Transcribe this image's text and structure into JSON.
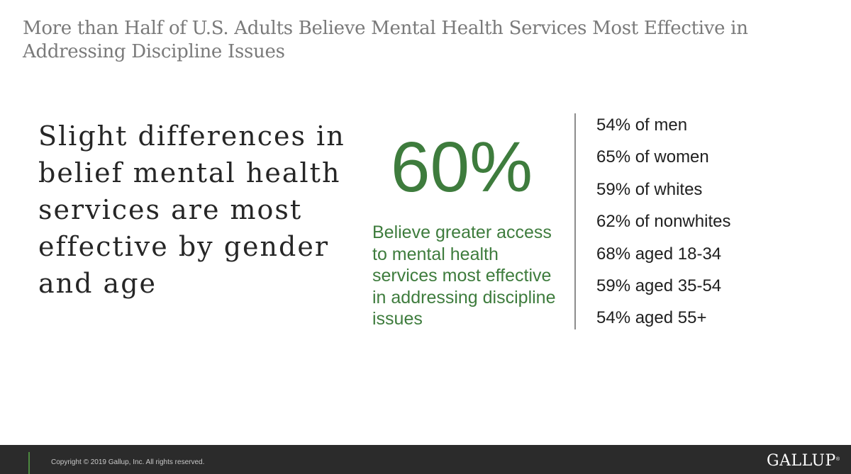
{
  "slide": {
    "title": "More than Half of U.S. Adults Believe Mental Health Services Most Effective in Addressing Discipline Issues",
    "lead_text": "Slight differences in belief mental health services are most effective by gender and age"
  },
  "highlight": {
    "value": "60%",
    "description": "Believe greater access to mental health services most effective in addressing discipline issues",
    "color": "#3e7c3d"
  },
  "breakdown": [
    "54% of men",
    "65% of women",
    "59% of whites",
    "62% of nonwhites",
    "68% aged 18-34",
    "59% aged 35-54",
    "54% aged 55+"
  ],
  "footer": {
    "copyright": "Copyright © 2019 Gallup, Inc. All rights reserved.",
    "logo_text": "GALLUP",
    "logo_mark": "®"
  }
}
